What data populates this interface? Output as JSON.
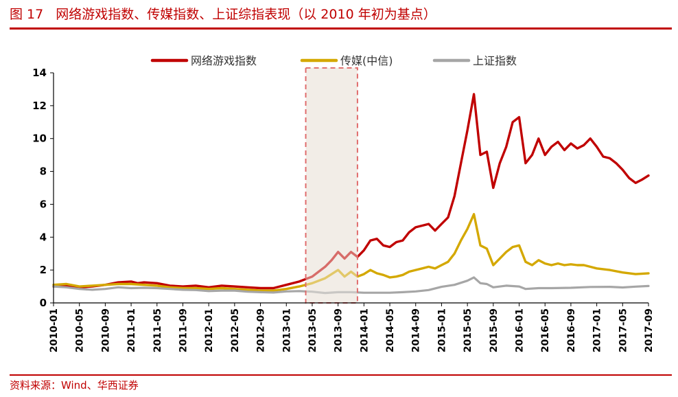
{
  "header": {
    "figure_label": "图 17",
    "title": "网络游戏指数、传媒指数、上证综指表现（以 2010 年初为基点）"
  },
  "source": "资料来源：Wind、华西证券",
  "chart_data": {
    "type": "line",
    "title": "网络游戏指数、传媒指数、上证综指表现（以 2010 年初为基点）",
    "xlabel": "",
    "ylabel": "",
    "ylim": [
      0,
      14
    ],
    "yticks": [
      "0",
      "2",
      "4",
      "6",
      "8",
      "10",
      "12",
      "14"
    ],
    "xticks": [
      "2010-01",
      "2010-05",
      "2010-09",
      "2011-01",
      "2011-05",
      "2011-09",
      "2012-01",
      "2012-05",
      "2012-09",
      "2013-01",
      "2013-05",
      "2013-09",
      "2014-01",
      "2014-05",
      "2014-09",
      "2015-01",
      "2015-05",
      "2015-09",
      "2016-01",
      "2016-05",
      "2016-09",
      "2017-01",
      "2017-05",
      "2017-09"
    ],
    "legend_position": "top-center",
    "grid": false,
    "highlight_box": {
      "x_start": "2013-04",
      "x_end": "2013-12",
      "y_top": 14.3
    },
    "series": [
      {
        "name": "网络游戏指数",
        "color": "#c00000",
        "points": [
          [
            "2010-01",
            1.0
          ],
          [
            "2010-03",
            1.05
          ],
          [
            "2010-05",
            0.95
          ],
          [
            "2010-07",
            1.0
          ],
          [
            "2010-09",
            1.1
          ],
          [
            "2010-11",
            1.25
          ],
          [
            "2011-01",
            1.3
          ],
          [
            "2011-02",
            1.2
          ],
          [
            "2011-03",
            1.25
          ],
          [
            "2011-05",
            1.2
          ],
          [
            "2011-07",
            1.05
          ],
          [
            "2011-09",
            1.0
          ],
          [
            "2011-11",
            1.05
          ],
          [
            "2012-01",
            0.95
          ],
          [
            "2012-03",
            1.05
          ],
          [
            "2012-05",
            1.0
          ],
          [
            "2012-07",
            0.95
          ],
          [
            "2012-09",
            0.9
          ],
          [
            "2012-11",
            0.9
          ],
          [
            "2013-01",
            1.1
          ],
          [
            "2013-03",
            1.3
          ],
          [
            "2013-05",
            1.6
          ],
          [
            "2013-06",
            1.9
          ],
          [
            "2013-07",
            2.2
          ],
          [
            "2013-08",
            2.6
          ],
          [
            "2013-09",
            3.1
          ],
          [
            "2013-10",
            2.7
          ],
          [
            "2013-11",
            3.1
          ],
          [
            "2013-12",
            2.8
          ],
          [
            "2014-01",
            3.2
          ],
          [
            "2014-02",
            3.8
          ],
          [
            "2014-03",
            3.9
          ],
          [
            "2014-04",
            3.5
          ],
          [
            "2014-05",
            3.4
          ],
          [
            "2014-06",
            3.7
          ],
          [
            "2014-07",
            3.8
          ],
          [
            "2014-08",
            4.3
          ],
          [
            "2014-09",
            4.6
          ],
          [
            "2014-10",
            4.7
          ],
          [
            "2014-11",
            4.8
          ],
          [
            "2014-12",
            4.4
          ],
          [
            "2015-01",
            4.8
          ],
          [
            "2015-02",
            5.2
          ],
          [
            "2015-03",
            6.5
          ],
          [
            "2015-04",
            8.5
          ],
          [
            "2015-05",
            10.5
          ],
          [
            "2015-06",
            12.7
          ],
          [
            "2015-07",
            9.0
          ],
          [
            "2015-08",
            9.2
          ],
          [
            "2015-09",
            7.0
          ],
          [
            "2015-10",
            8.5
          ],
          [
            "2015-11",
            9.5
          ],
          [
            "2015-12",
            11.0
          ],
          [
            "2016-01",
            11.3
          ],
          [
            "2016-02",
            8.5
          ],
          [
            "2016-03",
            9.0
          ],
          [
            "2016-04",
            10.0
          ],
          [
            "2016-05",
            9.0
          ],
          [
            "2016-06",
            9.5
          ],
          [
            "2016-07",
            9.8
          ],
          [
            "2016-08",
            9.3
          ],
          [
            "2016-09",
            9.7
          ],
          [
            "2016-10",
            9.4
          ],
          [
            "2016-11",
            9.6
          ],
          [
            "2016-12",
            10.0
          ],
          [
            "2017-01",
            9.5
          ],
          [
            "2017-02",
            8.9
          ],
          [
            "2017-03",
            8.8
          ],
          [
            "2017-04",
            8.5
          ],
          [
            "2017-05",
            8.1
          ],
          [
            "2017-06",
            7.6
          ],
          [
            "2017-07",
            7.3
          ],
          [
            "2017-08",
            7.5
          ],
          [
            "2017-09",
            7.75
          ]
        ]
      },
      {
        "name": "传媒(中信)",
        "color": "#d4a800",
        "points": [
          [
            "2010-01",
            1.1
          ],
          [
            "2010-03",
            1.15
          ],
          [
            "2010-05",
            1.0
          ],
          [
            "2010-07",
            1.05
          ],
          [
            "2010-09",
            1.1
          ],
          [
            "2010-11",
            1.15
          ],
          [
            "2011-01",
            1.15
          ],
          [
            "2011-03",
            1.1
          ],
          [
            "2011-05",
            1.05
          ],
          [
            "2011-07",
            0.95
          ],
          [
            "2011-09",
            0.9
          ],
          [
            "2011-11",
            0.9
          ],
          [
            "2012-01",
            0.85
          ],
          [
            "2012-03",
            0.9
          ],
          [
            "2012-05",
            0.85
          ],
          [
            "2012-07",
            0.8
          ],
          [
            "2012-09",
            0.75
          ],
          [
            "2012-11",
            0.75
          ],
          [
            "2013-01",
            0.85
          ],
          [
            "2013-03",
            1.0
          ],
          [
            "2013-05",
            1.2
          ],
          [
            "2013-07",
            1.5
          ],
          [
            "2013-09",
            2.0
          ],
          [
            "2013-10",
            1.6
          ],
          [
            "2013-11",
            1.9
          ],
          [
            "2013-12",
            1.6
          ],
          [
            "2014-01",
            1.75
          ],
          [
            "2014-02",
            2.0
          ],
          [
            "2014-03",
            1.8
          ],
          [
            "2014-04",
            1.7
          ],
          [
            "2014-05",
            1.55
          ],
          [
            "2014-06",
            1.6
          ],
          [
            "2014-07",
            1.7
          ],
          [
            "2014-08",
            1.9
          ],
          [
            "2014-09",
            2.0
          ],
          [
            "2014-10",
            2.1
          ],
          [
            "2014-11",
            2.2
          ],
          [
            "2014-12",
            2.1
          ],
          [
            "2015-01",
            2.3
          ],
          [
            "2015-02",
            2.5
          ],
          [
            "2015-03",
            3.0
          ],
          [
            "2015-04",
            3.8
          ],
          [
            "2015-05",
            4.5
          ],
          [
            "2015-06",
            5.4
          ],
          [
            "2015-07",
            3.5
          ],
          [
            "2015-08",
            3.3
          ],
          [
            "2015-09",
            2.3
          ],
          [
            "2015-10",
            2.7
          ],
          [
            "2015-11",
            3.1
          ],
          [
            "2015-12",
            3.4
          ],
          [
            "2016-01",
            3.5
          ],
          [
            "2016-02",
            2.5
          ],
          [
            "2016-03",
            2.3
          ],
          [
            "2016-04",
            2.6
          ],
          [
            "2016-05",
            2.4
          ],
          [
            "2016-06",
            2.3
          ],
          [
            "2016-07",
            2.4
          ],
          [
            "2016-08",
            2.3
          ],
          [
            "2016-09",
            2.35
          ],
          [
            "2016-10",
            2.3
          ],
          [
            "2016-11",
            2.3
          ],
          [
            "2016-12",
            2.2
          ],
          [
            "2017-01",
            2.1
          ],
          [
            "2017-03",
            2.0
          ],
          [
            "2017-05",
            1.85
          ],
          [
            "2017-07",
            1.75
          ],
          [
            "2017-09",
            1.8
          ]
        ]
      },
      {
        "name": "上证指数",
        "color": "#a6a6a6",
        "points": [
          [
            "2010-01",
            1.0
          ],
          [
            "2010-03",
            0.95
          ],
          [
            "2010-05",
            0.85
          ],
          [
            "2010-07",
            0.8
          ],
          [
            "2010-09",
            0.85
          ],
          [
            "2010-11",
            0.95
          ],
          [
            "2011-01",
            0.9
          ],
          [
            "2011-03",
            0.92
          ],
          [
            "2011-05",
            0.9
          ],
          [
            "2011-07",
            0.85
          ],
          [
            "2011-09",
            0.8
          ],
          [
            "2011-11",
            0.78
          ],
          [
            "2012-01",
            0.72
          ],
          [
            "2012-03",
            0.75
          ],
          [
            "2012-05",
            0.75
          ],
          [
            "2012-07",
            0.68
          ],
          [
            "2012-09",
            0.65
          ],
          [
            "2012-11",
            0.63
          ],
          [
            "2013-01",
            0.7
          ],
          [
            "2013-03",
            0.72
          ],
          [
            "2013-05",
            0.68
          ],
          [
            "2013-07",
            0.6
          ],
          [
            "2013-09",
            0.65
          ],
          [
            "2013-11",
            0.65
          ],
          [
            "2014-01",
            0.62
          ],
          [
            "2014-03",
            0.62
          ],
          [
            "2014-05",
            0.62
          ],
          [
            "2014-07",
            0.65
          ],
          [
            "2014-09",
            0.7
          ],
          [
            "2014-11",
            0.78
          ],
          [
            "2015-01",
            0.98
          ],
          [
            "2015-03",
            1.1
          ],
          [
            "2015-05",
            1.35
          ],
          [
            "2015-06",
            1.55
          ],
          [
            "2015-07",
            1.2
          ],
          [
            "2015-08",
            1.15
          ],
          [
            "2015-09",
            0.95
          ],
          [
            "2015-11",
            1.05
          ],
          [
            "2016-01",
            1.0
          ],
          [
            "2016-02",
            0.85
          ],
          [
            "2016-04",
            0.9
          ],
          [
            "2016-06",
            0.9
          ],
          [
            "2016-09",
            0.92
          ],
          [
            "2016-12",
            0.97
          ],
          [
            "2017-03",
            0.98
          ],
          [
            "2017-05",
            0.94
          ],
          [
            "2017-07",
            0.99
          ],
          [
            "2017-09",
            1.03
          ]
        ]
      }
    ]
  }
}
